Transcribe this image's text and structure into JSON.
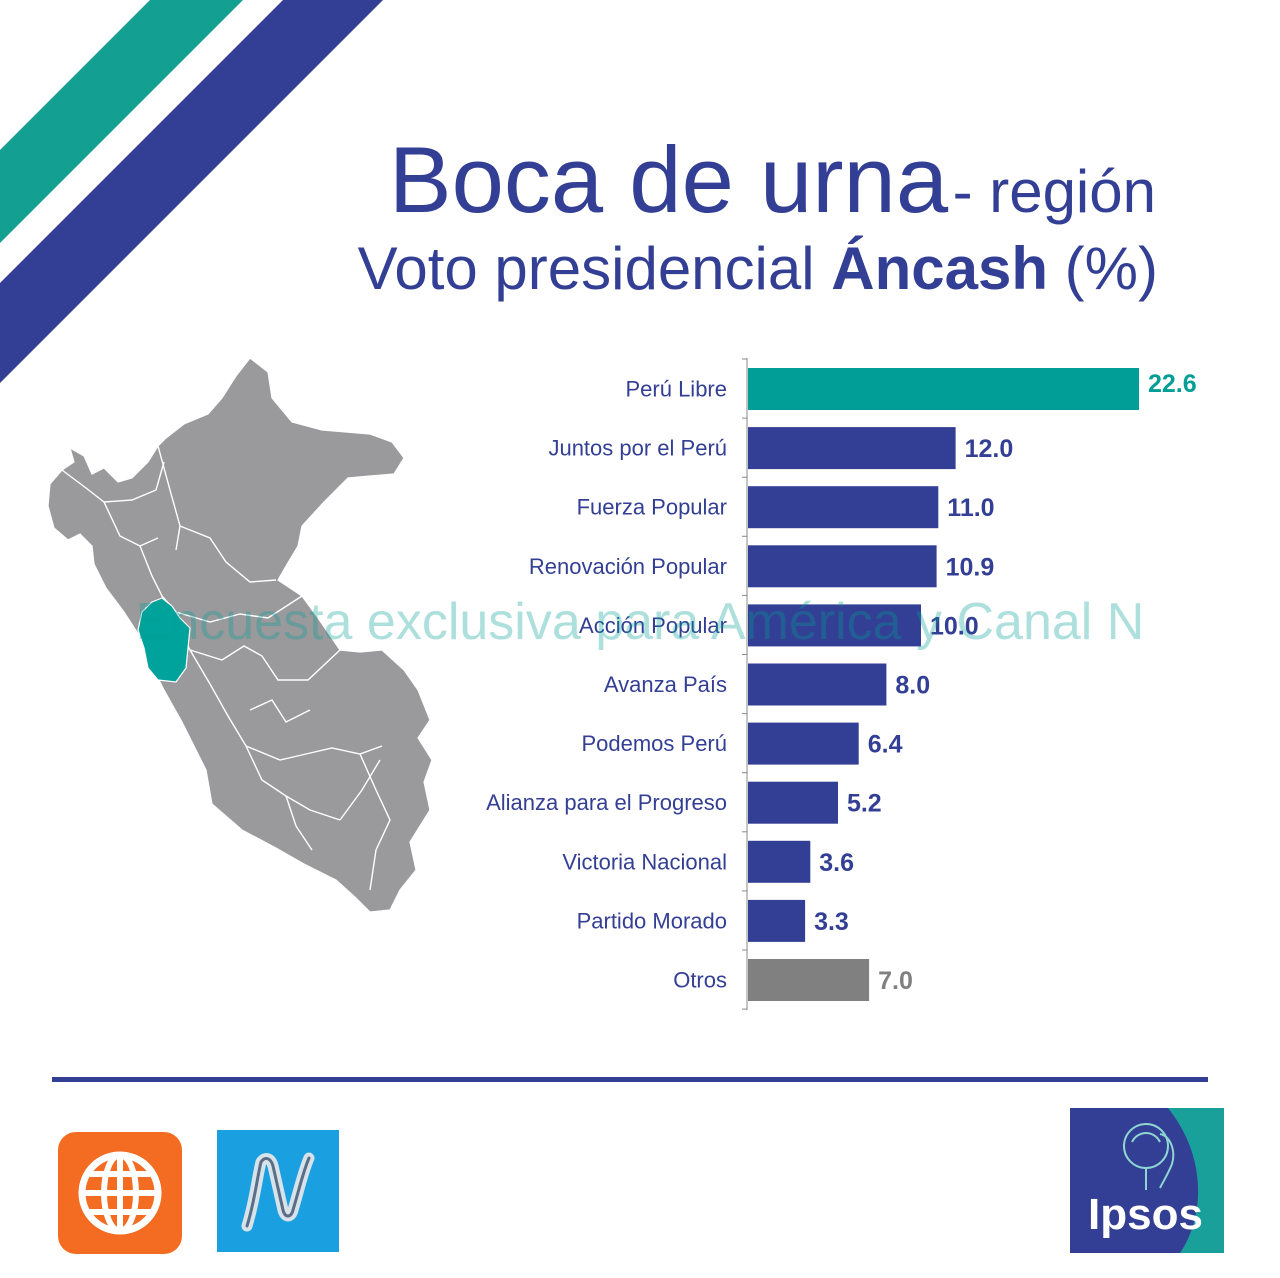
{
  "header": {
    "title_main": "Boca de urna",
    "title_suffix": "- región",
    "subtitle_prefix": "Voto presidencial ",
    "subtitle_region": "Áncash",
    "subtitle_unit": " (%)"
  },
  "watermark": "Encuesta exclusiva para América y Canal N",
  "colors": {
    "highlight": "#009e96",
    "primary": "#333f94",
    "other": "#808080",
    "map_region": "#00a39b",
    "map_base": "#9a9a9c"
  },
  "map": {
    "highlighted_region": "Áncash"
  },
  "logos": {
    "america": "america-globe-logo",
    "canal_n": "canal-n-logo",
    "ipsos": "Ipsos"
  },
  "chart_data": {
    "type": "bar",
    "orientation": "horizontal",
    "title": "Voto presidencial Áncash (%)",
    "categories": [
      "Perú Libre",
      "Juntos por el Perú",
      "Fuerza Popular",
      "Renovación Popular",
      "Acción Popular",
      "Avanza País",
      "Podemos Perú",
      "Alianza para el Progreso",
      "Victoria Nacional",
      "Partido Morado",
      "Otros"
    ],
    "values": [
      22.6,
      12.0,
      11.0,
      10.9,
      10.0,
      8.0,
      6.4,
      5.2,
      3.6,
      3.3,
      7.0
    ],
    "value_labels": [
      "22.6",
      "12.0",
      "11.0",
      "10.9",
      "10.0",
      "8.0",
      "6.4",
      "5.2",
      "3.6",
      "3.3",
      "7.0"
    ],
    "bar_colors": [
      "#009e96",
      "#333f94",
      "#333f94",
      "#333f94",
      "#333f94",
      "#333f94",
      "#333f94",
      "#333f94",
      "#333f94",
      "#333f94",
      "#808080"
    ],
    "label_colors": [
      "#009e96",
      "#333f94",
      "#333f94",
      "#333f94",
      "#333f94",
      "#333f94",
      "#333f94",
      "#333f94",
      "#333f94",
      "#333f94",
      "#808080"
    ],
    "xlim": [
      0,
      22.6
    ],
    "grid": false,
    "legend": "none"
  }
}
